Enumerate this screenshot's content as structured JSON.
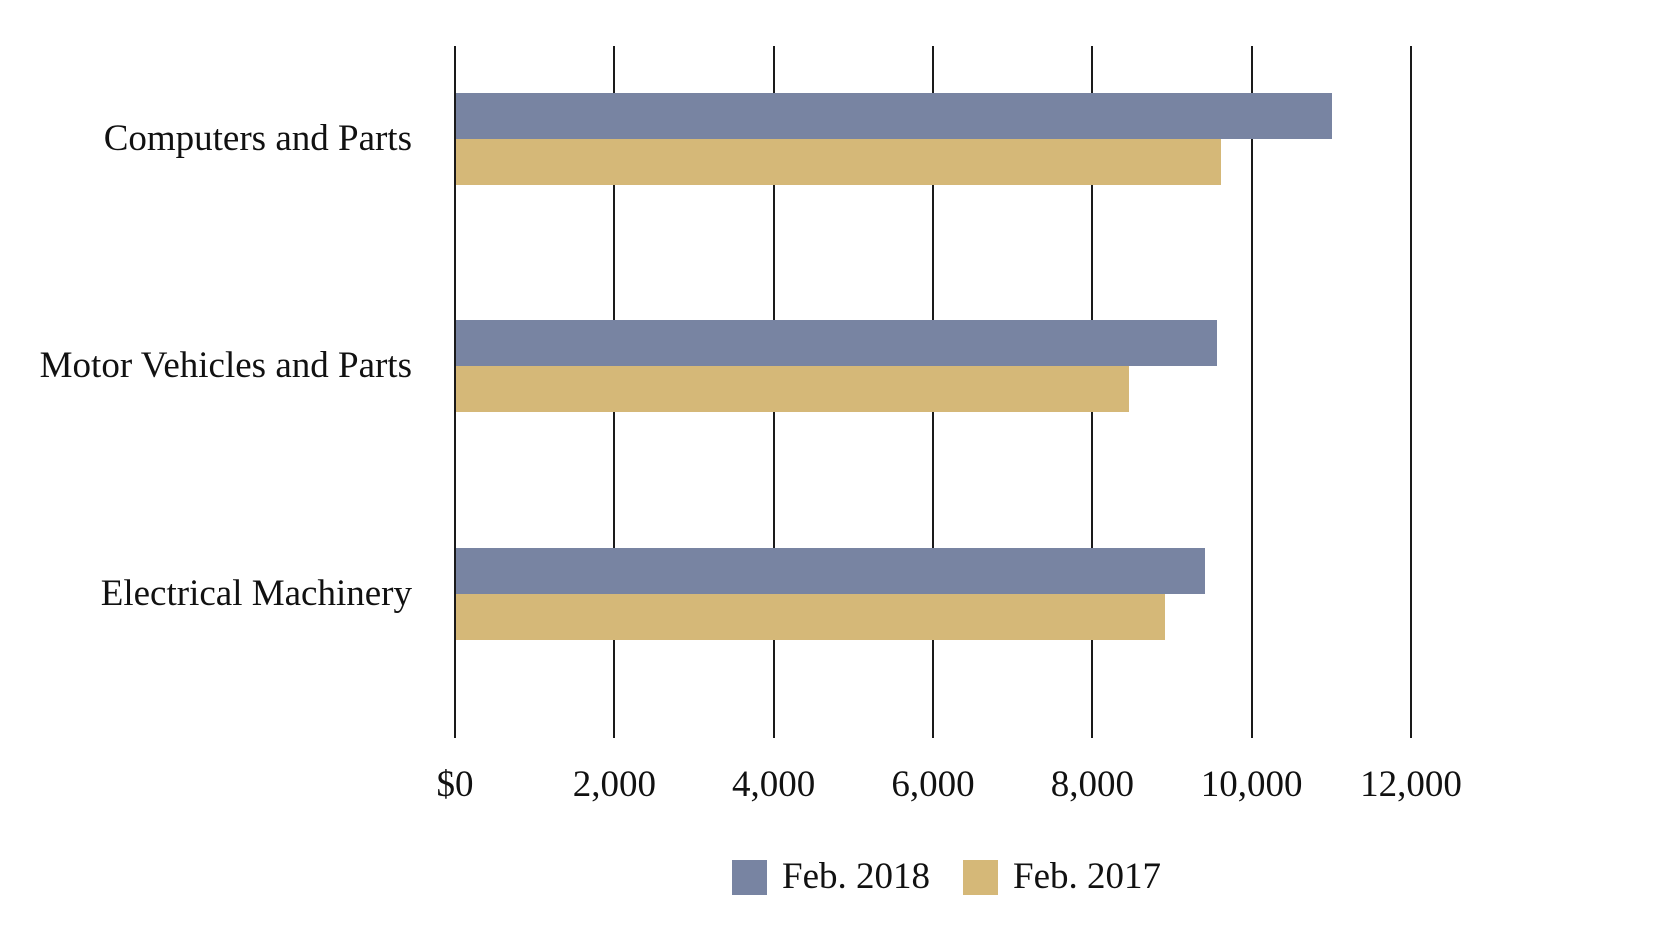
{
  "chart_data": {
    "type": "bar",
    "orientation": "horizontal",
    "title": "",
    "xlabel": "",
    "ylabel": "",
    "grid": "vertical-gridlines-on",
    "legend_position": "bottom",
    "categories": [
      "Computers and Parts",
      "Motor Vehicles and Parts",
      "Electrical Machinery"
    ],
    "series": [
      {
        "name": "Feb. 2018",
        "color": "#7884A2",
        "values": [
          11000,
          9550,
          9400
        ]
      },
      {
        "name": "Feb. 2017",
        "color": "#D5B878",
        "values": [
          9600,
          8450,
          8900
        ]
      }
    ],
    "x_axis": {
      "min": 0,
      "max": 12000,
      "tick_values": [
        0,
        2000,
        4000,
        6000,
        8000,
        10000,
        12000
      ],
      "tick_labels": [
        "$0",
        "2,000",
        "4,000",
        "6,000",
        "8,000",
        "10,000",
        "12,000"
      ],
      "unit_hint": "$"
    },
    "axis_line_color": "#1a1a1a",
    "text_color": "#111111"
  }
}
